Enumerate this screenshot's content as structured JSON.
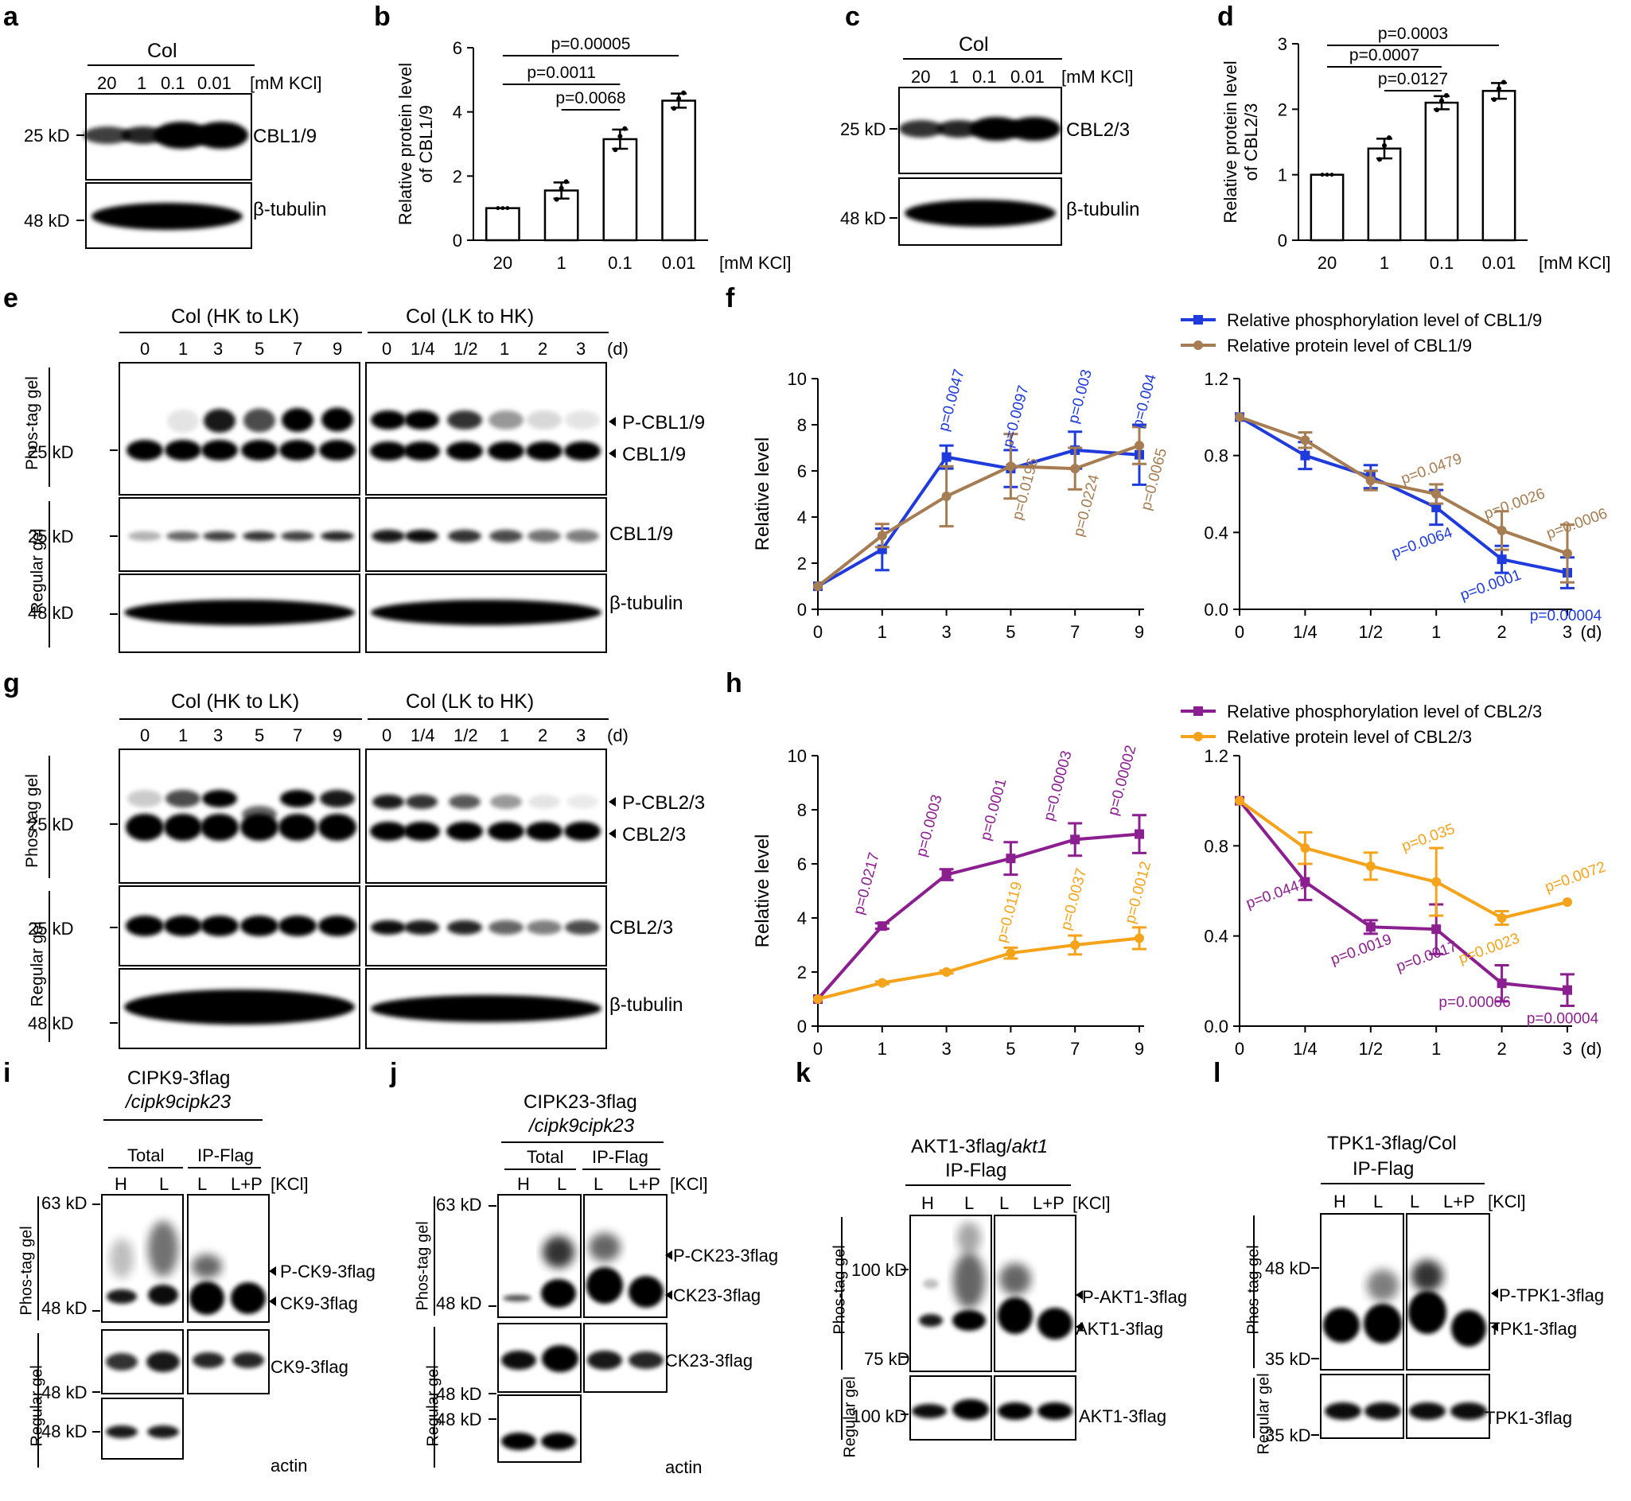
{
  "panel_labels": [
    "a",
    "b",
    "c",
    "d",
    "e",
    "f",
    "g",
    "h",
    "i",
    "j",
    "k",
    "l"
  ],
  "a": {
    "title": "Col",
    "lanes": [
      "20",
      "1",
      "0.1",
      "0.01"
    ],
    "unit": "[mM KCl]",
    "markers": [
      "25 kD",
      "48 kD"
    ],
    "bands": [
      "CBL1/9",
      "β-tubulin"
    ]
  },
  "c": {
    "title": "Col",
    "lanes": [
      "20",
      "1",
      "0.1",
      "0.01"
    ],
    "unit": "[mM KCl]",
    "markers": [
      "25 kD",
      "48 kD"
    ],
    "bands": [
      "CBL2/3",
      "β-tubulin"
    ]
  },
  "e": {
    "group1": "Col (HK to LK)",
    "group2": "Col (LK to HK)",
    "lanes1": [
      "0",
      "1",
      "3",
      "5",
      "7",
      "9"
    ],
    "lanes2": [
      "0",
      "1/4",
      "1/2",
      "1",
      "2",
      "3"
    ],
    "unit": "(d)",
    "side1": "Phos-tag gel",
    "side2": "Regular gel",
    "markers": [
      "25 kD",
      "25 kD",
      "48 kD"
    ],
    "bands": [
      "P-CBL1/9",
      "CBL1/9",
      "CBL1/9",
      "β-tubulin"
    ]
  },
  "g": {
    "group1": "Col (HK to LK)",
    "group2": "Col (LK to HK)",
    "lanes1": [
      "0",
      "1",
      "3",
      "5",
      "7",
      "9"
    ],
    "lanes2": [
      "0",
      "1/4",
      "1/2",
      "1",
      "2",
      "3"
    ],
    "unit": "(d)",
    "side1": "Phos-tag gel",
    "side2": "Regular gel",
    "markers": [
      "25 kD",
      "25 kD",
      "48 kD"
    ],
    "bands": [
      "P-CBL2/3",
      "CBL2/3",
      "CBL2/3",
      "β-tubulin"
    ]
  },
  "i": {
    "title1": "CIPK9-3flag",
    "title2": "/cipk9cipk23",
    "groups": [
      "Total",
      "IP-Flag"
    ],
    "lanes": [
      "H",
      "L",
      "L",
      "L+P"
    ],
    "unit": "[KCl]",
    "side1": "Phos-tag gel",
    "side2": "Regular gel",
    "markers": [
      "63 kD",
      "48 kD",
      "48 kD",
      "48 kD"
    ],
    "bands": [
      "P-CK9-3flag",
      "CK9-3flag",
      "CK9-3flag",
      "actin"
    ]
  },
  "j": {
    "title1": "CIPK23-3flag",
    "title2": "/cipk9cipk23",
    "groups": [
      "Total",
      "IP-Flag"
    ],
    "lanes": [
      "H",
      "L",
      "L",
      "L+P"
    ],
    "unit": "[KCl]",
    "side1": "Phos-tag gel",
    "side2": "Regular gel",
    "markers": [
      "63 kD",
      "48 kD",
      "48 kD",
      "48 kD"
    ],
    "bands": [
      "P-CK23-3flag",
      "CK23-3flag",
      "CK23-3flag",
      "actin"
    ]
  },
  "k": {
    "title1": "AKT1-3flag/",
    "title1b": "akt1",
    "title2": "IP-Flag",
    "lanes": [
      "H",
      "L",
      "L",
      "L+P"
    ],
    "unit": "[KCl]",
    "side1": "Phos-tag gel",
    "side2": "Regular gel",
    "markers": [
      "100 kD",
      "75 kD",
      "100 kD"
    ],
    "bands": [
      "P-AKT1-3flag",
      "AKT1-3flag",
      "AKT1-3flag"
    ]
  },
  "l": {
    "title1": "TPK1-3flag/Col",
    "title2": "IP-Flag",
    "lanes": [
      "H",
      "L",
      "L",
      "L+P"
    ],
    "unit": "[KCl]",
    "side1": "Phos-tag gel",
    "side2": "Regular gel",
    "markers": [
      "48 kD",
      "35 kD",
      "35 kD"
    ],
    "bands": [
      "P-TPK1-3flag",
      "TPK1-3flag",
      "TPK1-3flag"
    ]
  },
  "colors": {
    "blue": "#1f3bdb",
    "brown": "#a67c52",
    "purple": "#8b1f8f",
    "orange": "#f5a31a",
    "black": "#000000"
  },
  "chart_data": [
    {
      "id": "b",
      "type": "bar",
      "ylabel": "Relative protein level of CBL1/9",
      "xlabel": "[mM KCl]",
      "categories": [
        "20",
        "1",
        "0.1",
        "0.01"
      ],
      "values": [
        1.0,
        1.55,
        3.15,
        4.35
      ],
      "errors": [
        0.0,
        0.25,
        0.3,
        0.22
      ],
      "ylim": [
        0,
        6
      ],
      "yticks": [
        "0",
        "2",
        "4",
        "6"
      ],
      "sig": [
        {
          "label": "p=0.00005",
          "from": 0,
          "to": 3
        },
        {
          "label": "p=0.0011",
          "from": 0,
          "to": 2
        },
        {
          "label": "p=0.0068",
          "from": 1,
          "to": 2
        }
      ]
    },
    {
      "id": "d",
      "type": "bar",
      "ylabel": "Relative protein level of CBL2/3",
      "xlabel": "[mM KCl]",
      "categories": [
        "20",
        "1",
        "0.1",
        "0.01"
      ],
      "values": [
        1.0,
        1.4,
        2.1,
        2.28
      ],
      "errors": [
        0.0,
        0.15,
        0.1,
        0.12
      ],
      "ylim": [
        0,
        3
      ],
      "yticks": [
        "0",
        "1",
        "2",
        "3"
      ],
      "sig": [
        {
          "label": "p=0.0003",
          "from": 0,
          "to": 3
        },
        {
          "label": "p=0.0007",
          "from": 0,
          "to": 2
        },
        {
          "label": "p=0.0127",
          "from": 1,
          "to": 2
        }
      ]
    },
    {
      "id": "f1",
      "type": "line",
      "ylabel": "Relative level",
      "x": [
        "0",
        "1",
        "3",
        "5",
        "7",
        "9"
      ],
      "ylim": [
        0,
        10
      ],
      "yticks": [
        "0",
        "2",
        "4",
        "6",
        "8",
        "10"
      ],
      "legend": [
        "Relative phosphorylation level of CBL1/9",
        "Relative protein level of CBL1/9"
      ],
      "series": [
        {
          "name": "Relative phosphorylation level of CBL1/9",
          "color": "blue",
          "marker": "square",
          "values": [
            1.0,
            2.6,
            6.6,
            6.1,
            6.9,
            6.7
          ],
          "errors": [
            0,
            0.9,
            0.5,
            0.8,
            0.8,
            1.3
          ],
          "pvalues": [
            "",
            "",
            "p=0.0047",
            "p=0.0097",
            "p=0.003",
            "p=0.004"
          ]
        },
        {
          "name": "Relative protein level of CBL1/9",
          "color": "brown",
          "marker": "circle",
          "values": [
            1.0,
            3.2,
            4.9,
            6.2,
            6.1,
            7.1
          ],
          "errors": [
            0,
            0.5,
            1.3,
            1.4,
            0.9,
            0.8
          ],
          "pvalues": [
            "",
            "",
            "",
            "p=0.0196",
            "p=0.0224",
            "p=0.0065"
          ]
        }
      ]
    },
    {
      "id": "f2",
      "type": "line",
      "x": [
        "0",
        "1/4",
        "1/2",
        "1",
        "2",
        "3"
      ],
      "xunit": "(d)",
      "ylim": [
        0,
        1.2
      ],
      "yticks": [
        "0.0",
        "0.4",
        "0.8",
        "1.2"
      ],
      "series": [
        {
          "name": "Relative phosphorylation level of CBL1/9",
          "color": "blue",
          "marker": "square",
          "values": [
            1.0,
            0.8,
            0.69,
            0.53,
            0.26,
            0.19
          ],
          "errors": [
            0,
            0.07,
            0.06,
            0.09,
            0.07,
            0.08
          ],
          "pvalues": [
            "",
            "",
            "",
            "p=0.0064",
            "p=0.0001",
            "p=0.00004"
          ]
        },
        {
          "name": "Relative protein level of CBL1/9",
          "color": "brown",
          "marker": "circle",
          "values": [
            1.0,
            0.88,
            0.67,
            0.6,
            0.41,
            0.29
          ],
          "errors": [
            0,
            0.04,
            0.05,
            0.05,
            0.1,
            0.15
          ],
          "pvalues": [
            "",
            "",
            "",
            "p=0.0479",
            "p=0.0026",
            "p=0.0006"
          ]
        }
      ]
    },
    {
      "id": "h1",
      "type": "line",
      "ylabel": "Relative level",
      "x": [
        "0",
        "1",
        "3",
        "5",
        "7",
        "9"
      ],
      "ylim": [
        0,
        10
      ],
      "yticks": [
        "0",
        "2",
        "4",
        "6",
        "8",
        "10"
      ],
      "legend": [
        "Relative phosphorylation level of CBL2/3",
        "Relative protein level of CBL2/3"
      ],
      "series": [
        {
          "name": "Relative phosphorylation level of CBL2/3",
          "color": "purple",
          "marker": "square",
          "values": [
            1.0,
            3.7,
            5.6,
            6.2,
            6.9,
            7.1
          ],
          "errors": [
            0,
            0.1,
            0.2,
            0.6,
            0.6,
            0.7
          ],
          "pvalues": [
            "",
            "p=0.0217",
            "p=0.0003",
            "p=0.0001",
            "p=0.00003",
            "p=0.00002"
          ]
        },
        {
          "name": "Relative protein level of CBL2/3",
          "color": "orange",
          "marker": "circle",
          "values": [
            1.0,
            1.6,
            2.0,
            2.7,
            3.0,
            3.25
          ],
          "errors": [
            0,
            0.05,
            0.05,
            0.2,
            0.35,
            0.4
          ],
          "pvalues": [
            "",
            "",
            "",
            "p=0.0119",
            "p=0.0037",
            "p=0.0012"
          ]
        }
      ]
    },
    {
      "id": "h2",
      "type": "line",
      "x": [
        "0",
        "1/4",
        "1/2",
        "1",
        "2",
        "3"
      ],
      "xunit": "(d)",
      "ylim": [
        0,
        1.2
      ],
      "yticks": [
        "0.0",
        "0.4",
        "0.8",
        "1.2"
      ],
      "series": [
        {
          "name": "Relative phosphorylation level of CBL2/3",
          "color": "purple",
          "marker": "square",
          "values": [
            1.0,
            0.64,
            0.44,
            0.43,
            0.19,
            0.16
          ],
          "errors": [
            0,
            0.08,
            0.03,
            0.11,
            0.08,
            0.07
          ],
          "pvalues": [
            "",
            "p=0.0441",
            "p=0.0019",
            "p=0.0017",
            "p=0.00006",
            "p=0.00004"
          ]
        },
        {
          "name": "Relative protein level of CBL2/3",
          "color": "orange",
          "marker": "circle",
          "values": [
            1.0,
            0.79,
            0.71,
            0.64,
            0.48,
            0.55
          ],
          "errors": [
            0,
            0.07,
            0.06,
            0.15,
            0.03,
            0.0
          ],
          "pvalues": [
            "",
            "",
            "",
            "p=0.035",
            "p=0.0023",
            "p=0.0072"
          ]
        }
      ]
    }
  ]
}
